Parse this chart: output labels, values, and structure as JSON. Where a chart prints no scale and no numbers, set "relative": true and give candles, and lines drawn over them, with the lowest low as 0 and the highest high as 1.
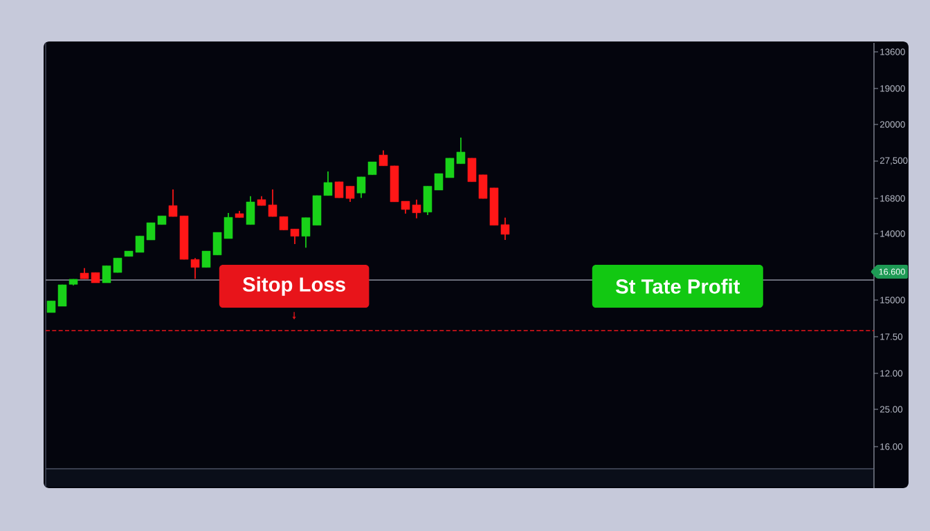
{
  "chart_data": {
    "type": "candlestick",
    "relative": true,
    "categories": [
      null,
      null,
      null,
      null,
      null,
      null,
      null,
      null,
      null,
      null,
      null,
      null,
      null,
      null,
      null,
      null,
      null,
      null,
      null,
      null,
      null,
      null,
      null,
      null,
      null,
      null,
      null,
      null,
      null,
      null,
      null,
      null,
      null,
      null,
      null,
      null,
      null,
      null,
      null,
      null,
      null,
      null
    ],
    "ohlc": [
      [
        0,
        0.067,
        0,
        0.067
      ],
      [
        0.036,
        0.159,
        0.036,
        0.159
      ],
      [
        0.161,
        0.191,
        0.155,
        0.191
      ],
      [
        0.226,
        0.254,
        0.193,
        0.193
      ],
      [
        0.229,
        0.229,
        0.17,
        0.17
      ],
      [
        0.17,
        0.268,
        0.17,
        0.268
      ],
      [
        0.229,
        0.312,
        0.229,
        0.312
      ],
      [
        0.321,
        0.352,
        0.321,
        0.352
      ],
      [
        0.344,
        0.438,
        0.344,
        0.438
      ],
      [
        0.415,
        0.514,
        0.415,
        0.514
      ],
      [
        0.503,
        0.553,
        0.503,
        0.553
      ],
      [
        0.612,
        0.704,
        0.549,
        0.549
      ],
      [
        0.553,
        0.553,
        0.304,
        0.304
      ],
      [
        0.304,
        0.312,
        0.193,
        0.258
      ],
      [
        0.258,
        0.352,
        0.258,
        0.352
      ],
      [
        0.329,
        0.459,
        0.329,
        0.459
      ],
      [
        0.423,
        0.57,
        0.423,
        0.545
      ],
      [
        0.566,
        0.581,
        0.543,
        0.543
      ],
      [
        0.503,
        0.665,
        0.503,
        0.633
      ],
      [
        0.646,
        0.665,
        0.612,
        0.612
      ],
      [
        0.616,
        0.704,
        0.549,
        0.549
      ],
      [
        0.549,
        0.549,
        0.472,
        0.472
      ],
      [
        0.478,
        0.478,
        0.392,
        0.436
      ],
      [
        0.436,
        0.543,
        0.371,
        0.543
      ],
      [
        0.499,
        0.669,
        0.499,
        0.669
      ],
      [
        0.669,
        0.807,
        0.669,
        0.744
      ],
      [
        0.748,
        0.748,
        0.656,
        0.656
      ],
      [
        0.723,
        0.723,
        0.633,
        0.652
      ],
      [
        0.683,
        0.776,
        0.656,
        0.776
      ],
      [
        0.788,
        0.862,
        0.788,
        0.862
      ],
      [
        0.901,
        0.927,
        0.839,
        0.839
      ],
      [
        0.839,
        0.839,
        0.633,
        0.633
      ],
      [
        0.637,
        0.637,
        0.566,
        0.589
      ],
      [
        0.616,
        0.646,
        0.539,
        0.57
      ],
      [
        0.574,
        0.723,
        0.558,
        0.723
      ],
      [
        0.7,
        0.795,
        0.7,
        0.795
      ],
      [
        0.771,
        0.883,
        0.771,
        0.883
      ],
      [
        0.851,
        1,
        0.851,
        0.918
      ],
      [
        0.883,
        0.883,
        0.748,
        0.748
      ],
      [
        0.788,
        0.788,
        0.652,
        0.652
      ],
      [
        0.713,
        0.713,
        0.499,
        0.499
      ],
      [
        0.503,
        0.543,
        0.415,
        0.447
      ]
    ],
    "colors": [
      "#19d219",
      "#19d219",
      "#19d219",
      "#ff1717",
      "#ff1717",
      "#19d219",
      "#19d219",
      "#19d219",
      "#19d219",
      "#19d219",
      "#19d219",
      "#ff1717",
      "#ff1717",
      "#ff1717",
      "#19d219",
      "#19d219",
      "#19d219",
      "#ff1717",
      "#19d219",
      "#ff1717",
      "#ff1717",
      "#ff1717",
      "#ff1717",
      "#19d219",
      "#19d219",
      "#19d219",
      "#ff1717",
      "#ff1717",
      "#19d219",
      "#19d219",
      "#ff1717",
      "#ff1717",
      "#ff1717",
      "#ff1717",
      "#19d219",
      "#19d219",
      "#19d219",
      "#19d219",
      "#ff1717",
      "#ff1717",
      "#ff1717",
      "#ff1717"
    ],
    "ref_lines": [
      {
        "axis": "y",
        "value": 0.186,
        "color": "#8c909e",
        "line_style": "solid"
      },
      {
        "axis": "y",
        "value": -0.103,
        "label": "Sitop Loss",
        "color": "#e8141a",
        "line_style": "dashed"
      }
    ],
    "annotations": [
      "St Tate Profit",
      "13600",
      "19000",
      "20000",
      "27,500",
      "16800",
      "14000",
      "16.600",
      "15000",
      "17.50",
      "12.00",
      "25.00",
      "16.00"
    ]
  }
}
